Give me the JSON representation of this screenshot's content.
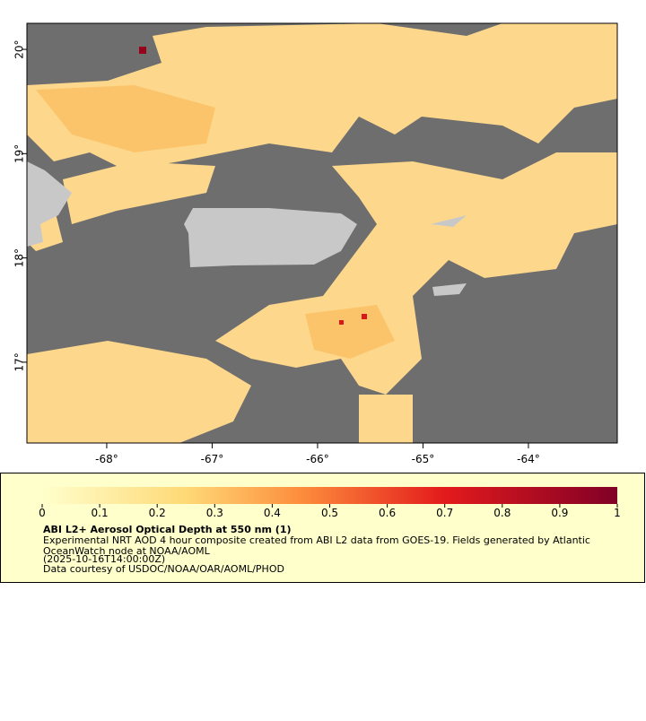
{
  "map": {
    "xlim": [
      -68.757,
      -63.157
    ],
    "ylim": [
      16.225,
      20.25
    ],
    "lon_ticks": [
      {
        "value": -68,
        "label": "-68°"
      },
      {
        "value": -67,
        "label": "-67°"
      },
      {
        "value": -66,
        "label": "-66°"
      },
      {
        "value": -65,
        "label": "-65°"
      },
      {
        "value": -64,
        "label": "-64°"
      }
    ],
    "lat_ticks": [
      {
        "value": 17,
        "label": "17°"
      },
      {
        "value": 18,
        "label": "18°"
      },
      {
        "value": 19,
        "label": "19°"
      },
      {
        "value": 20,
        "label": "20°"
      }
    ]
  },
  "colorbar": {
    "range": [
      0,
      1
    ],
    "ticks": [
      0,
      0.1,
      0.2,
      0.3,
      0.4,
      0.5,
      0.6,
      0.7,
      0.8,
      0.9,
      1
    ],
    "title": "ABI L2+ Aerosol Optical Depth at 550 nm (1)",
    "lines": [
      "Experimental NRT AOD 4 hour composite created from ABI L2 data from GOES-19. Fields generated by Atlantic",
      "OceanWatch node at NOAA/AOML",
      "(2025-10-16T14:00:00Z)",
      "Data courtesy of USDOC/NOAA/OAR/AOML/PHOD"
    ]
  }
}
